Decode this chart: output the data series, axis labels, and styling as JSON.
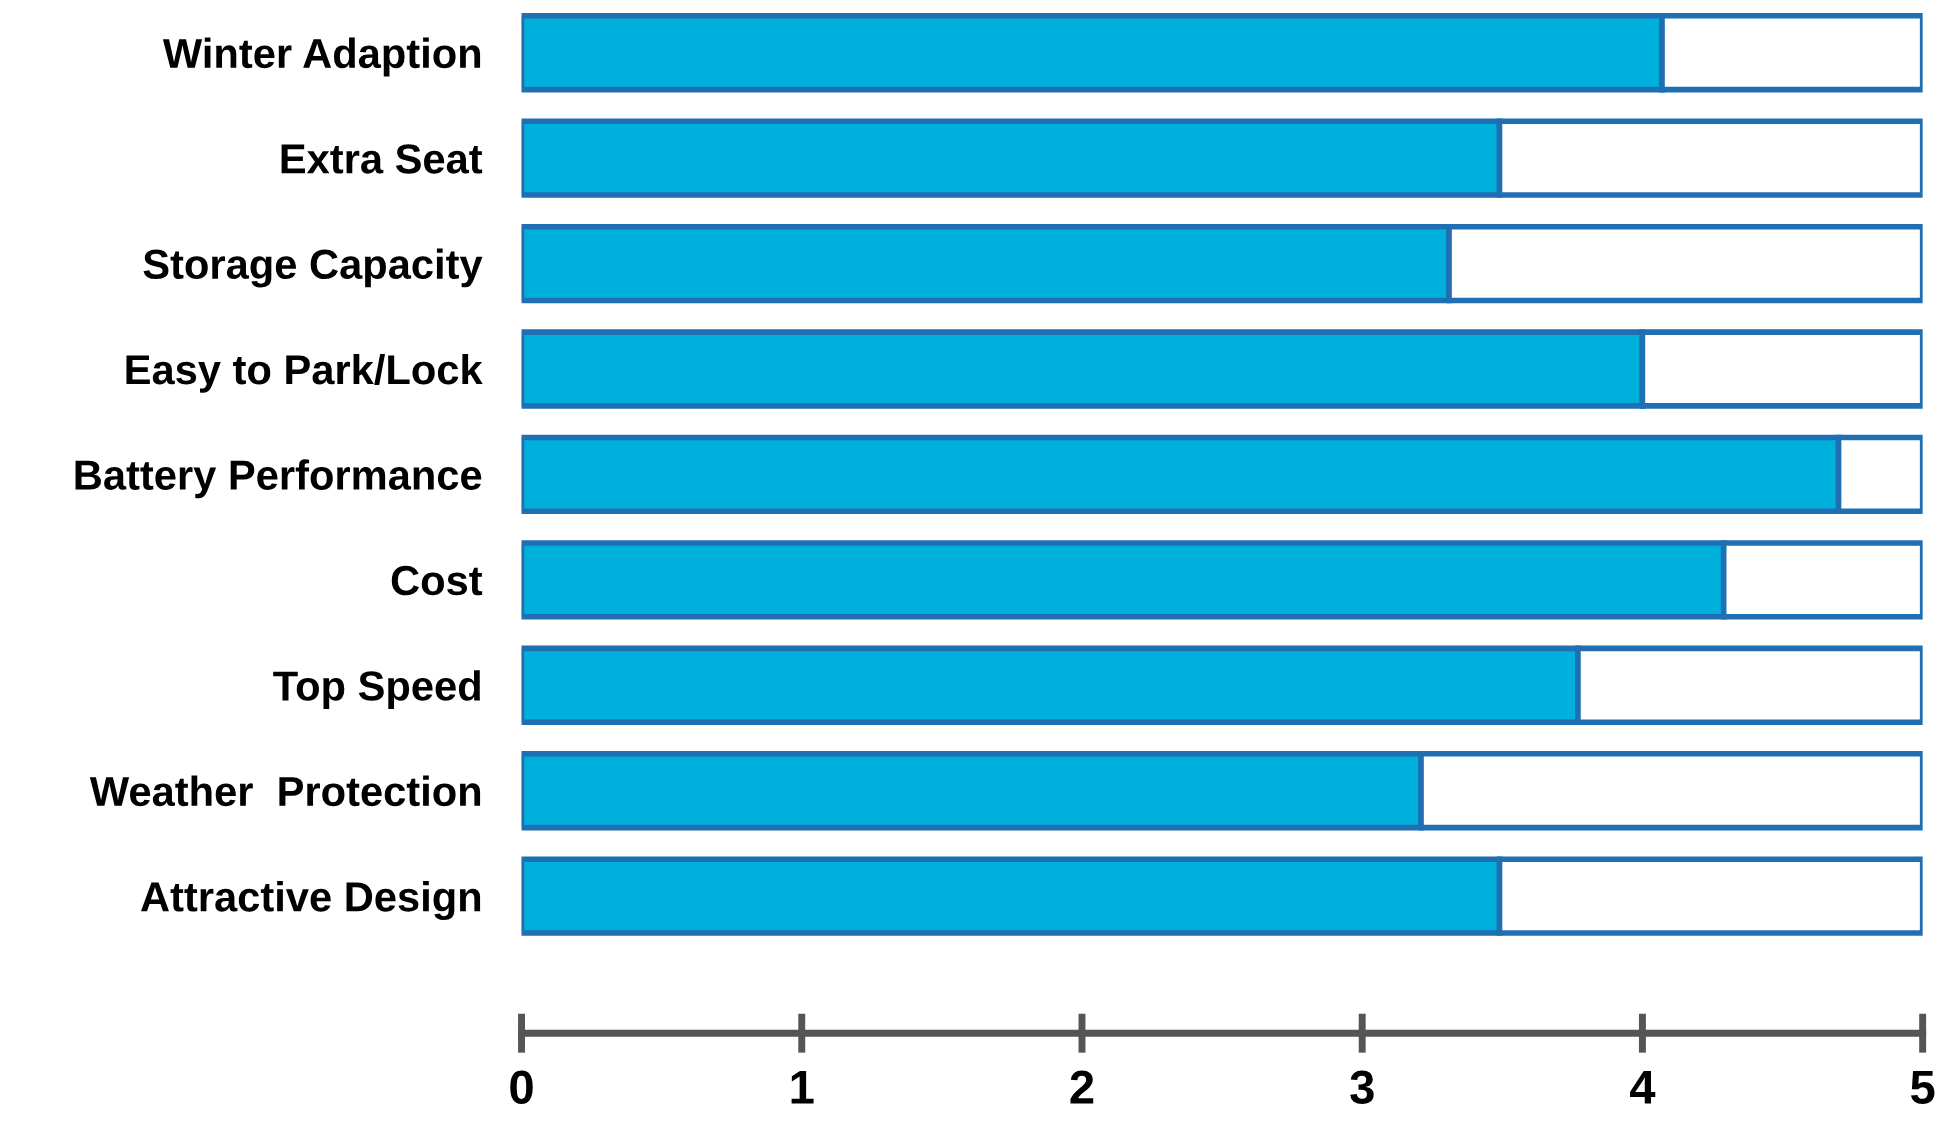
{
  "chart_data": {
    "type": "bar",
    "orientation": "horizontal",
    "stacked": true,
    "categories": [
      "Winter Adaption",
      "Extra Seat",
      "Storage Capacity",
      "Easy to Park/Lock",
      "Battery Performance",
      "Cost",
      "Top Speed",
      "Weather  Protection",
      "Attractive Design"
    ],
    "series": [
      {
        "color": "#00b0dc",
        "values": [
          4.07,
          3.49,
          3.31,
          4.0,
          4.7,
          4.29,
          3.77,
          3.21,
          3.49
        ]
      },
      {
        "color": "#ffffff",
        "values": [
          0.93,
          1.51,
          1.69,
          1.0,
          0.3,
          0.71,
          1.23,
          1.79,
          1.51
        ]
      }
    ],
    "xlim": [
      0,
      5
    ],
    "xticks": [
      0,
      1,
      2,
      3,
      4,
      5
    ],
    "grid": false,
    "legend": false
  }
}
